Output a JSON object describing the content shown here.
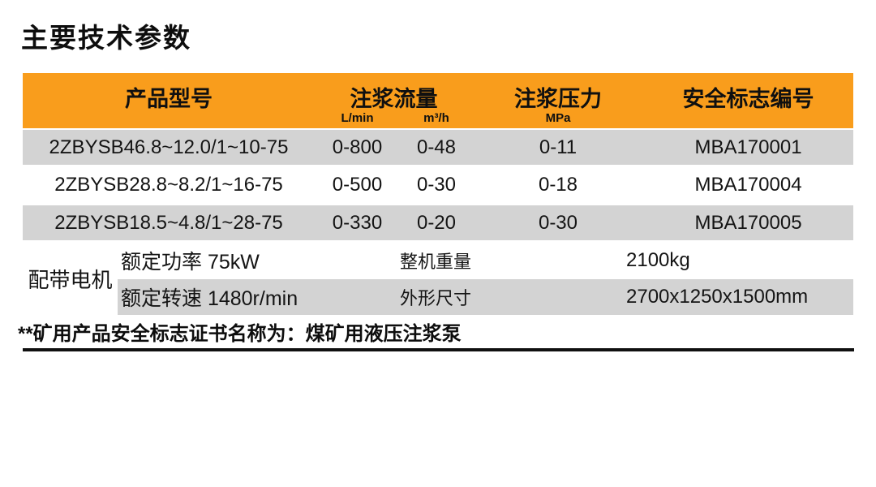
{
  "page": {
    "title": "主要技术参数"
  },
  "colors": {
    "header_bg": "#F99D1C",
    "row_alt_bg": "#D3D3D3",
    "text": "#141414",
    "rule": "#101010"
  },
  "table": {
    "headers": {
      "product_model": "产品型号",
      "flow": {
        "label": "注浆流量",
        "units": [
          "L/min",
          "m³/h"
        ]
      },
      "pressure": {
        "label": "注浆压力",
        "unit": "MPa"
      },
      "safety_no": "安全标志编号"
    },
    "rows": [
      {
        "model": "2ZBYSB46.8~12.0/1~10-75",
        "flow_lmin": "0-800",
        "flow_m3h": "0-48",
        "pressure": "0-11",
        "safety_no": "MBA170001"
      },
      {
        "model": "2ZBYSB28.8~8.2/1~16-75",
        "flow_lmin": "0-500",
        "flow_m3h": "0-30",
        "pressure": "0-18",
        "safety_no": "MBA170004"
      },
      {
        "model": "2ZBYSB18.5~4.8/1~28-75",
        "flow_lmin": "0-330",
        "flow_m3h": "0-20",
        "pressure": "0-30",
        "safety_no": "MBA170005"
      }
    ],
    "motor": {
      "label": "配带电机",
      "rows": [
        {
          "spec": "额定功率 75kW",
          "attr": "整机重量",
          "value": "2100kg"
        },
        {
          "spec": "额定转速 1480r/min",
          "attr": "外形尺寸",
          "value": "2700x1250x1500mm"
        }
      ]
    }
  },
  "footnote": "**矿用产品安全标志证书名称为：煤矿用液压注浆泵"
}
